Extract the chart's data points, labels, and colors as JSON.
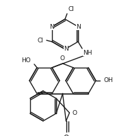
{
  "background_color": "#ffffff",
  "line_color": "#1a1a1a",
  "line_width": 1.0,
  "font_size": 6.5,
  "figsize": [
    1.68,
    1.99
  ],
  "dpi": 100,
  "xlim": [
    0,
    168
  ],
  "ylim": [
    0,
    199
  ]
}
